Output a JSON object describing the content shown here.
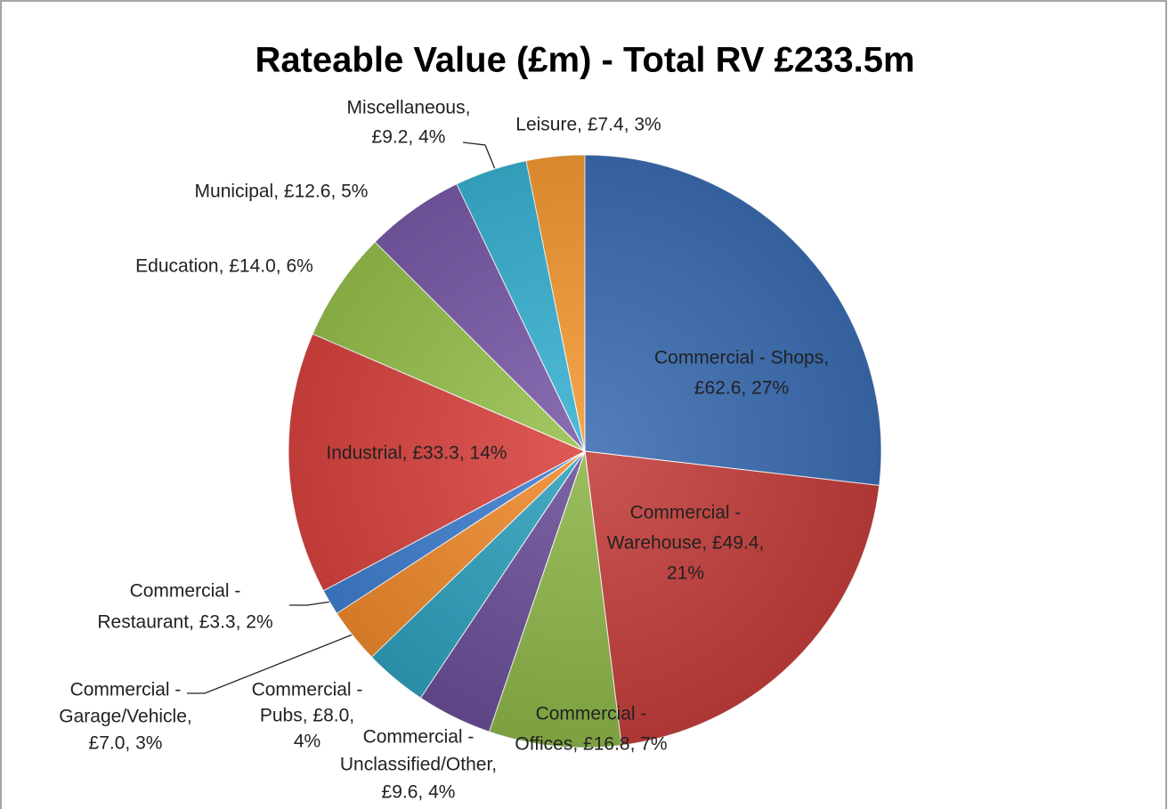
{
  "chart_data": {
    "type": "pie",
    "title": "Rateable Value (£m) - Total RV £233.5m",
    "values": [
      62.6,
      49.4,
      16.8,
      9.6,
      8.0,
      7.0,
      3.3,
      33.3,
      14.0,
      12.6,
      9.2,
      7.4
    ],
    "value_labels": [
      [
        "Commercial - Shops,",
        "£62.6, 27%"
      ],
      [
        "Commercial -",
        "Warehouse, £49.4,",
        "21%"
      ],
      [
        "Commercial -",
        "Offices, £16.8, 7%"
      ],
      [
        "Commercial -",
        "Unclassified/Other,",
        "£9.6, 4%"
      ],
      [
        "Commercial -",
        "Pubs, £8.0,",
        "4%"
      ],
      [
        "Commercial -",
        "Garage/Vehicle,",
        "£7.0, 3%"
      ],
      [
        "Commercial -",
        "Restaurant, £3.3, 2%"
      ],
      [
        "Industrial, £33.3, 14%"
      ],
      [
        "Education, £14.0, 6%"
      ],
      [
        "Municipal, £12.6, 5%"
      ],
      [
        "Miscellaneous,",
        "£9.2, 4%"
      ],
      [
        "Leisure, £7.4, 3%"
      ]
    ],
    "colors": [
      "#3b6db3",
      "#c43e3b",
      "#8db649",
      "#6a4f98",
      "#2fa0bd",
      "#ef8a2c",
      "#3f7fd0",
      "#d9433f",
      "#97c14d",
      "#7a5aa8",
      "#39b2d3",
      "#f59a32"
    ]
  }
}
